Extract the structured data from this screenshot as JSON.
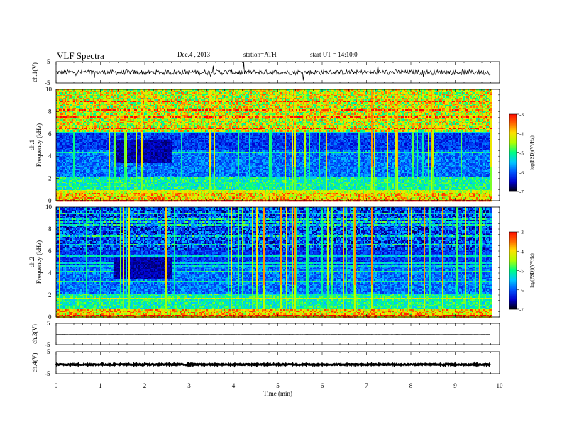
{
  "header": {
    "title": "VLF Spectra",
    "date": "Dec.4 , 2013",
    "station": "station=ATH",
    "start": "start UT = 14:10:0"
  },
  "colors": {
    "colormap": [
      "#000000",
      "#0000cc",
      "#0055ff",
      "#00c8ff",
      "#00ff80",
      "#b0ff00",
      "#ffe000",
      "#ff6000",
      "#ff0000",
      "#ffffff"
    ],
    "trace": "#000000"
  },
  "chart_data": [
    {
      "type": "line",
      "panel": "ch1-waveform",
      "ylabel": "ch.1(V)",
      "ylim": [
        -5,
        5
      ],
      "yticks": [
        "5",
        "-5"
      ],
      "description_values": {
        "level": 0,
        "noise_amp": 1.2,
        "spike_amp": 4.5
      }
    },
    {
      "type": "heatmap",
      "panel": "ch1-spectrogram",
      "ylabel_outer": "ch.1",
      "ylabel": "Frequency (kHz)",
      "ylim": [
        0,
        10
      ],
      "yticks": [
        "0",
        "2",
        "4",
        "6",
        "8",
        "10"
      ],
      "colorbar": {
        "label": "log(PSD)(V²/Hz)",
        "range": [
          -7,
          -3
        ],
        "ticks": [
          "-3",
          "-4",
          "-5",
          "-6",
          "-7"
        ]
      }
    },
    {
      "type": "heatmap",
      "panel": "ch2-spectrogram",
      "ylabel_outer": "ch.2",
      "ylabel": "Frequency (kHz)",
      "ylim": [
        0,
        10
      ],
      "yticks": [
        "0",
        "2",
        "4",
        "6",
        "8",
        "10"
      ],
      "colorbar": {
        "label": "log(PSD)(V²/Hz)",
        "range": [
          -7,
          -3
        ],
        "ticks": [
          "-3",
          "-4",
          "-5",
          "-6",
          "-7"
        ]
      }
    },
    {
      "type": "line",
      "panel": "ch3-waveform",
      "ylabel": "ch.3(V)",
      "ylim": [
        -5,
        5
      ],
      "yticks": [
        "5",
        "-5"
      ],
      "description_values": {
        "level": -0.2,
        "noise_amp": 0.05,
        "spike_amp": 0
      }
    },
    {
      "type": "line",
      "panel": "ch4-waveform",
      "ylabel": "ch.4(V)",
      "ylim": [
        -5,
        5
      ],
      "yticks": [
        "5",
        "-5"
      ],
      "description_values": {
        "level": -0.8,
        "noise_amp": 0.3,
        "spike_amp": 0
      }
    }
  ],
  "x_axis": {
    "label": "Time (min)",
    "range": [
      0,
      10
    ],
    "ticks": [
      "0",
      "1",
      "2",
      "3",
      "4",
      "5",
      "6",
      "7",
      "8",
      "9",
      "10"
    ],
    "data_end": 9.8
  }
}
